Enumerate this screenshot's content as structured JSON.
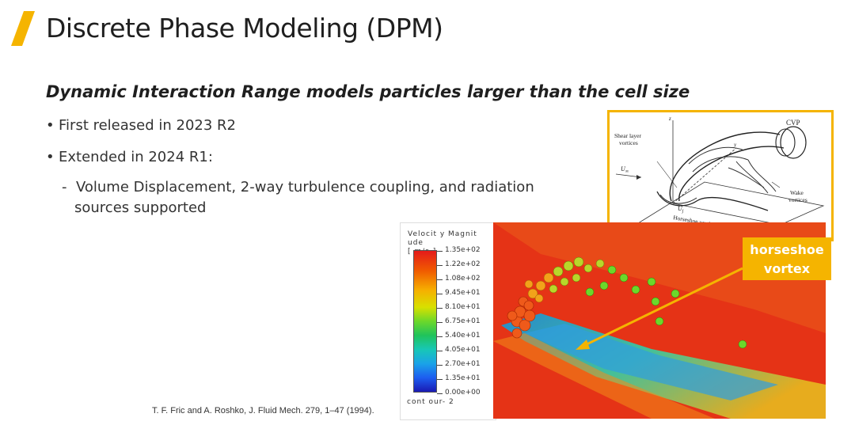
{
  "title": "Discrete Phase Modeling (DPM)",
  "subtitle": "Dynamic Interaction Range models particles larger than the cell size",
  "bullets": [
    "First released in 2023 R2",
    "Extended in 2024 R1:"
  ],
  "sub_bullet": {
    "marker": "-",
    "line1": "Volume Displacement, 2-way turbulence coupling, and radiation",
    "line2": "sources supported"
  },
  "citation": "T. F. Fric and A. Roshko, J. Fluid Mech. 279, 1–47 (1994).",
  "callout": {
    "line1": "horseshoe",
    "line2": "vortex"
  },
  "sketch_labels": {
    "cvp": "CVP",
    "shear1": "Shear layer",
    "shear2": "vortices",
    "wake1": "Wake",
    "wake2": "vortices",
    "horseshoe": "Horseshoe vortices",
    "uinf": "U",
    "uinf_sub": "∞",
    "uj": "U",
    "uj_sub": "j",
    "axis_z": "z",
    "axis_y": "y",
    "axis_x": "x"
  },
  "colorbar": {
    "title1": "Velocit y Magnit ude",
    "title2": "[ m/s ]",
    "ticks": [
      "1.35e+02",
      "1.22e+02",
      "1.08e+02",
      "9.45e+01",
      "8.10e+01",
      "6.75e+01",
      "5.40e+01",
      "4.05e+01",
      "2.70e+01",
      "1.35e+01",
      "0.00e+00"
    ],
    "footer": "cont our- 2"
  },
  "colors": {
    "accent": "#f5b400",
    "text": "#222222"
  }
}
